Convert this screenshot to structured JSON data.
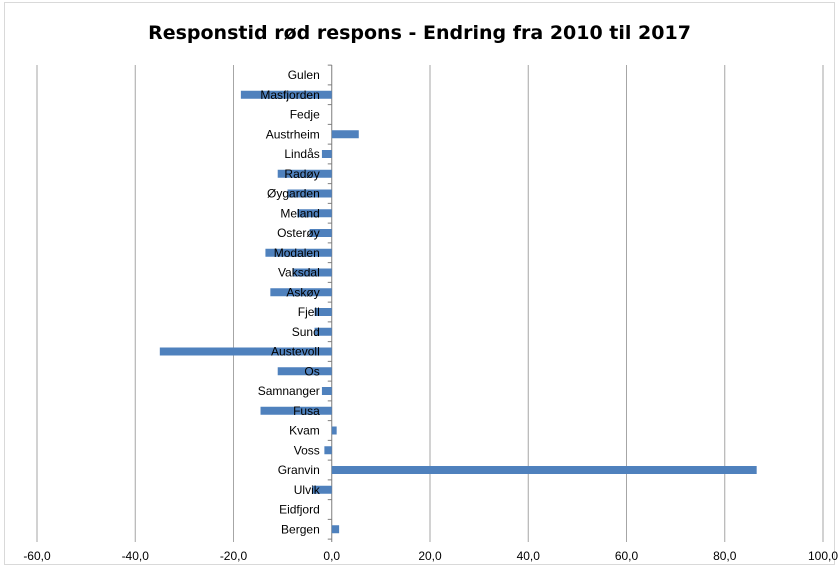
{
  "chart_data": {
    "type": "bar",
    "orientation": "horizontal",
    "title": "Responstid rød respons - Endring fra 2010 til 2017",
    "xlabel": "",
    "ylabel": "",
    "xlim": [
      -60,
      100
    ],
    "x_ticks": [
      "-60,0",
      "-40,0",
      "-20,0",
      "0,0",
      "20,0",
      "40,0",
      "60,0",
      "80,0",
      "100,0"
    ],
    "x_tick_values": [
      -60,
      -40,
      -20,
      0,
      20,
      40,
      60,
      80,
      100
    ],
    "grid": "vertical major gridlines",
    "legend": "none",
    "bar_color": "#4f81bd",
    "categories": [
      "Gulen",
      "Masfjorden",
      "Fedje",
      "Austrheim",
      "Lindås",
      "Radøy",
      "Øygarden",
      "Meland",
      "Osterøy",
      "Modalen",
      "Vaksdal",
      "Askøy",
      "Fjell",
      "Sund",
      "Austevoll",
      "Os",
      "Samnanger",
      "Fusa",
      "Kvam",
      "Voss",
      "Granvin",
      "Ulvik",
      "Eidfjord",
      "Bergen"
    ],
    "values": [
      0,
      -18.5,
      0,
      5.5,
      -2,
      -11,
      -9,
      -7,
      -4.5,
      -13.5,
      -8,
      -12.5,
      -3.5,
      -3.5,
      -35,
      -11,
      -2,
      -14.5,
      1,
      -1.5,
      86.5,
      -4,
      0,
      1.5
    ]
  }
}
